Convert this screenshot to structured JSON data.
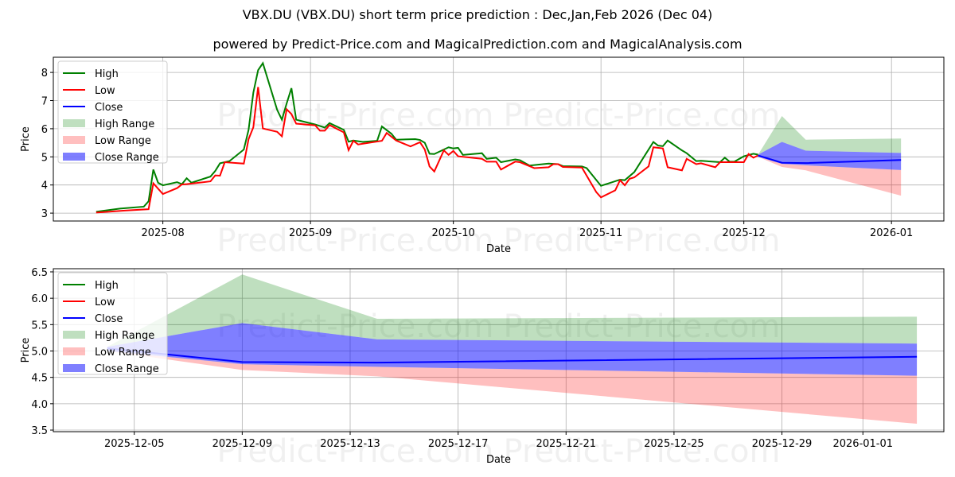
{
  "title": "VBX.DU (VBX.DU) short term price prediction : Dec,Jan,Feb 2026 (Dec 04)",
  "subtitle": "powered by Predict-Price.com and MagicalPrediction.com and MagicalAnalysis.com",
  "watermark": "Predict-Price.com",
  "colors": {
    "high": "#008000",
    "low": "#ff0000",
    "close": "#0000ff",
    "high_range": "#008000",
    "low_range": "#ff0000",
    "close_range": "#0000ff"
  },
  "legend": [
    "High",
    "Low",
    "Close",
    "High Range",
    "Low Range",
    "Close Range"
  ],
  "chart_data": [
    {
      "type": "line",
      "xlabel": "Date",
      "ylabel": "Price",
      "xlim": [
        "2025-07-09",
        "2026-01-12"
      ],
      "ylim": [
        2.72,
        8.54
      ],
      "grid": true,
      "legend_position": "top-left",
      "yticks": [
        3,
        4,
        5,
        6,
        7,
        8
      ],
      "xticks": [
        "2025-08",
        "2025-09",
        "2025-10",
        "2025-11",
        "2025-12",
        "2026-01"
      ],
      "high": [
        [
          "2025-07-18",
          3.05
        ],
        [
          "2025-07-23",
          3.16
        ],
        [
          "2025-07-28",
          3.23
        ],
        [
          "2025-07-29",
          3.42
        ],
        [
          "2025-07-30",
          4.55
        ],
        [
          "2025-07-31",
          4.08
        ],
        [
          "2025-08-01",
          3.99
        ],
        [
          "2025-08-04",
          4.1
        ],
        [
          "2025-08-05",
          4.03
        ],
        [
          "2025-08-06",
          4.24
        ],
        [
          "2025-08-07",
          4.08
        ],
        [
          "2025-08-11",
          4.3
        ],
        [
          "2025-08-12",
          4.5
        ],
        [
          "2025-08-13",
          4.77
        ],
        [
          "2025-08-15",
          4.85
        ],
        [
          "2025-08-18",
          5.26
        ],
        [
          "2025-08-19",
          5.96
        ],
        [
          "2025-08-20",
          7.28
        ],
        [
          "2025-08-21",
          8.08
        ],
        [
          "2025-08-22",
          8.33
        ],
        [
          "2025-08-25",
          6.67
        ],
        [
          "2025-08-26",
          6.32
        ],
        [
          "2025-08-27",
          6.9
        ],
        [
          "2025-08-28",
          7.44
        ],
        [
          "2025-08-29",
          6.32
        ],
        [
          "2025-09-02",
          6.15
        ],
        [
          "2025-09-04",
          6.04
        ],
        [
          "2025-09-05",
          6.2
        ],
        [
          "2025-09-08",
          5.96
        ],
        [
          "2025-09-09",
          5.54
        ],
        [
          "2025-09-10",
          5.58
        ],
        [
          "2025-09-12",
          5.53
        ],
        [
          "2025-09-15",
          5.57
        ],
        [
          "2025-09-16",
          6.08
        ],
        [
          "2025-09-18",
          5.82
        ],
        [
          "2025-09-19",
          5.61
        ],
        [
          "2025-09-23",
          5.63
        ],
        [
          "2025-09-24",
          5.6
        ],
        [
          "2025-09-25",
          5.5
        ],
        [
          "2025-09-26",
          5.11
        ],
        [
          "2025-09-27",
          5.1
        ],
        [
          "2025-09-30",
          5.34
        ],
        [
          "2025-10-01",
          5.3
        ],
        [
          "2025-10-02",
          5.32
        ],
        [
          "2025-10-03",
          5.07
        ],
        [
          "2025-10-07",
          5.13
        ],
        [
          "2025-10-08",
          4.93
        ],
        [
          "2025-10-10",
          4.97
        ],
        [
          "2025-10-11",
          4.81
        ],
        [
          "2025-10-14",
          4.91
        ],
        [
          "2025-10-15",
          4.88
        ],
        [
          "2025-10-17",
          4.69
        ],
        [
          "2025-10-21",
          4.76
        ],
        [
          "2025-10-23",
          4.74
        ],
        [
          "2025-10-24",
          4.67
        ],
        [
          "2025-10-28",
          4.66
        ],
        [
          "2025-10-29",
          4.6
        ],
        [
          "2025-11-01",
          3.97
        ],
        [
          "2025-11-05",
          4.19
        ],
        [
          "2025-11-06",
          4.17
        ],
        [
          "2025-11-08",
          4.46
        ],
        [
          "2025-11-12",
          5.53
        ],
        [
          "2025-11-13",
          5.4
        ],
        [
          "2025-11-14",
          5.38
        ],
        [
          "2025-11-15",
          5.58
        ],
        [
          "2025-11-18",
          5.23
        ],
        [
          "2025-11-19",
          5.13
        ],
        [
          "2025-11-21",
          4.85
        ],
        [
          "2025-11-22",
          4.86
        ],
        [
          "2025-11-26",
          4.81
        ],
        [
          "2025-11-27",
          4.97
        ],
        [
          "2025-11-28",
          4.83
        ],
        [
          "2025-11-29",
          4.83
        ],
        [
          "2025-12-01",
          5.02
        ],
        [
          "2025-12-03",
          5.11
        ],
        [
          "2025-12-04",
          5.08
        ]
      ],
      "low": [
        [
          "2025-07-18",
          3.02
        ],
        [
          "2025-07-24",
          3.09
        ],
        [
          "2025-07-29",
          3.14
        ],
        [
          "2025-07-30",
          4.06
        ],
        [
          "2025-08-01",
          3.68
        ],
        [
          "2025-08-04",
          3.89
        ],
        [
          "2025-08-05",
          4.02
        ],
        [
          "2025-08-06",
          4.03
        ],
        [
          "2025-08-11",
          4.13
        ],
        [
          "2025-08-12",
          4.34
        ],
        [
          "2025-08-13",
          4.33
        ],
        [
          "2025-08-14",
          4.81
        ],
        [
          "2025-08-18",
          4.76
        ],
        [
          "2025-08-19",
          5.63
        ],
        [
          "2025-08-20",
          6.05
        ],
        [
          "2025-08-21",
          7.48
        ],
        [
          "2025-08-22",
          6.01
        ],
        [
          "2025-08-25",
          5.89
        ],
        [
          "2025-08-26",
          5.73
        ],
        [
          "2025-08-27",
          6.69
        ],
        [
          "2025-08-28",
          6.52
        ],
        [
          "2025-08-29",
          6.18
        ],
        [
          "2025-09-02",
          6.12
        ],
        [
          "2025-09-03",
          5.93
        ],
        [
          "2025-09-04",
          5.93
        ],
        [
          "2025-09-05",
          6.13
        ],
        [
          "2025-09-08",
          5.87
        ],
        [
          "2025-09-09",
          5.24
        ],
        [
          "2025-09-10",
          5.57
        ],
        [
          "2025-09-11",
          5.44
        ],
        [
          "2025-09-16",
          5.57
        ],
        [
          "2025-09-17",
          5.85
        ],
        [
          "2025-09-19",
          5.58
        ],
        [
          "2025-09-22",
          5.37
        ],
        [
          "2025-09-24",
          5.52
        ],
        [
          "2025-09-25",
          5.26
        ],
        [
          "2025-09-26",
          4.66
        ],
        [
          "2025-09-27",
          4.48
        ],
        [
          "2025-09-29",
          5.23
        ],
        [
          "2025-09-30",
          5.07
        ],
        [
          "2025-10-01",
          5.21
        ],
        [
          "2025-10-02",
          5.02
        ],
        [
          "2025-10-07",
          4.93
        ],
        [
          "2025-10-08",
          4.83
        ],
        [
          "2025-10-10",
          4.83
        ],
        [
          "2025-10-11",
          4.55
        ],
        [
          "2025-10-14",
          4.83
        ],
        [
          "2025-10-15",
          4.81
        ],
        [
          "2025-10-18",
          4.6
        ],
        [
          "2025-10-21",
          4.63
        ],
        [
          "2025-10-22",
          4.74
        ],
        [
          "2025-10-23",
          4.74
        ],
        [
          "2025-10-24",
          4.64
        ],
        [
          "2025-10-28",
          4.62
        ],
        [
          "2025-10-31",
          3.75
        ],
        [
          "2025-11-01",
          3.56
        ],
        [
          "2025-11-04",
          3.81
        ],
        [
          "2025-11-05",
          4.17
        ],
        [
          "2025-11-06",
          3.99
        ],
        [
          "2025-11-07",
          4.22
        ],
        [
          "2025-11-08",
          4.27
        ],
        [
          "2025-11-11",
          4.66
        ],
        [
          "2025-11-12",
          5.34
        ],
        [
          "2025-11-14",
          5.3
        ],
        [
          "2025-11-15",
          4.63
        ],
        [
          "2025-11-18",
          4.52
        ],
        [
          "2025-11-19",
          4.93
        ],
        [
          "2025-11-21",
          4.74
        ],
        [
          "2025-11-22",
          4.77
        ],
        [
          "2025-11-25",
          4.63
        ],
        [
          "2025-11-26",
          4.81
        ],
        [
          "2025-12-01",
          4.81
        ],
        [
          "2025-12-02",
          5.1
        ],
        [
          "2025-12-03",
          4.97
        ],
        [
          "2025-12-04",
          5.05
        ]
      ],
      "forecast": {
        "dates": [
          "2025-12-04",
          "2025-12-09",
          "2025-12-14",
          "2026-01-03"
        ],
        "close": [
          5.05,
          4.79,
          4.78,
          4.89
        ],
        "high_range": [
          [
            5.08,
            5.08
          ],
          [
            5.53,
            6.45
          ],
          [
            5.22,
            5.61
          ],
          [
            5.14,
            5.65
          ]
        ],
        "close_range": [
          [
            5.0,
            5.08
          ],
          [
            4.75,
            5.53
          ],
          [
            4.7,
            5.22
          ],
          [
            4.53,
            5.14
          ]
        ],
        "low_range": [
          [
            5.0,
            5.0
          ],
          [
            4.64,
            4.75
          ],
          [
            4.52,
            4.7
          ],
          [
            3.62,
            4.53
          ]
        ]
      }
    },
    {
      "type": "area",
      "xlabel": "Date",
      "ylabel": "Price",
      "xlim": [
        "2025-12-02",
        "2026-01-04"
      ],
      "ylim": [
        3.47,
        6.56
      ],
      "grid": true,
      "legend_position": "top-left",
      "yticks": [
        3.5,
        4.0,
        4.5,
        5.0,
        5.5,
        6.0,
        6.5
      ],
      "ytick_labels": [
        "3.5",
        "4.0",
        "4.5",
        "5.0",
        "5.5",
        "6.0",
        "6.5"
      ],
      "xticks": [
        "2025-12-05",
        "2025-12-09",
        "2025-12-13",
        "2025-12-17",
        "2025-12-21",
        "2025-12-25",
        "2025-12-29",
        "2026-01-01"
      ],
      "forecast_ref": "same forecast as chart 1"
    }
  ]
}
